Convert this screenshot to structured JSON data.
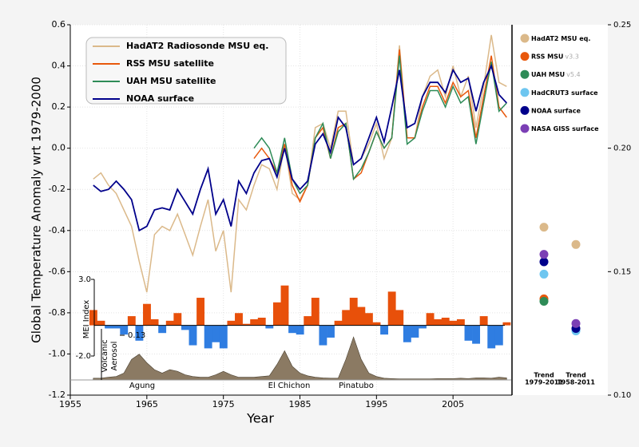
{
  "chart_data": [
    {
      "type": "line",
      "xlabel": "Year",
      "ylabel": "Global Temperature Anomaly wrt 1979-2000",
      "xlim": [
        1955,
        2012.6
      ],
      "xticks": [
        1955,
        1965,
        1975,
        1985,
        1995,
        2005
      ],
      "ylim": [
        -1.2,
        0.6
      ],
      "yticks": [
        0.6,
        0.4,
        0.2,
        {
          "value": 0,
          "label": "0.0"
        },
        -0.2,
        -0.4,
        -0.6,
        -0.8,
        {
          "value": -1,
          "label": "-1.0"
        },
        -1.2
      ],
      "grid": true,
      "legend": "upper left",
      "x": [
        1958,
        1959,
        1960,
        1961,
        1962,
        1963,
        1964,
        1965,
        1966,
        1967,
        1968,
        1969,
        1970,
        1971,
        1972,
        1973,
        1974,
        1975,
        1976,
        1977,
        1978,
        1979,
        1980,
        1981,
        1982,
        1983,
        1984,
        1985,
        1986,
        1987,
        1988,
        1989,
        1990,
        1991,
        1992,
        1993,
        1994,
        1995,
        1996,
        1997,
        1998,
        1999,
        2000,
        2001,
        2002,
        2003,
        2004,
        2005,
        2006,
        2007,
        2008,
        2009,
        2010,
        2011,
        2012
      ],
      "series": [
        {
          "name": "HadAT2 Radiosonde MSU eq.",
          "color": "#dbb98a",
          "values": [
            -0.15,
            -0.12,
            -0.18,
            -0.22,
            -0.3,
            -0.38,
            -0.55,
            -0.7,
            -0.42,
            -0.38,
            -0.4,
            -0.32,
            -0.42,
            -0.52,
            -0.38,
            -0.25,
            -0.5,
            -0.4,
            -0.7,
            -0.25,
            -0.3,
            -0.18,
            -0.08,
            -0.1,
            -0.2,
            0.02,
            -0.22,
            -0.25,
            -0.18,
            0.1,
            0.12,
            0.0,
            0.18,
            0.18,
            -0.08,
            -0.05,
            0.02,
            0.12,
            -0.05,
            0.05,
            0.5,
            0.05,
            0.05,
            0.25,
            0.35,
            0.38,
            0.25,
            0.4,
            0.25,
            0.35,
            0.1,
            0.3,
            0.55,
            0.32,
            0.3
          ]
        },
        {
          "name": "RSS MSU satellite",
          "color": "#e8580c",
          "values": [
            null,
            null,
            null,
            null,
            null,
            null,
            null,
            null,
            null,
            null,
            null,
            null,
            null,
            null,
            null,
            null,
            null,
            null,
            null,
            null,
            null,
            -0.05,
            0.0,
            -0.05,
            -0.12,
            0.02,
            -0.18,
            -0.26,
            -0.18,
            0.05,
            0.1,
            -0.05,
            0.1,
            0.12,
            -0.15,
            -0.12,
            -0.02,
            0.08,
            0.0,
            0.05,
            0.48,
            0.05,
            0.05,
            0.2,
            0.3,
            0.3,
            0.22,
            0.32,
            0.25,
            0.28,
            0.05,
            0.25,
            0.45,
            0.2,
            0.15
          ]
        },
        {
          "name": "UAH MSU satellite",
          "color": "#2e8b57",
          "values": [
            null,
            null,
            null,
            null,
            null,
            null,
            null,
            null,
            null,
            null,
            null,
            null,
            null,
            null,
            null,
            null,
            null,
            null,
            null,
            null,
            null,
            0.0,
            0.05,
            0.0,
            -0.12,
            0.05,
            -0.15,
            -0.22,
            -0.18,
            0.05,
            0.12,
            -0.05,
            0.08,
            0.12,
            -0.15,
            -0.1,
            -0.02,
            0.08,
            0.0,
            0.05,
            0.45,
            0.02,
            0.05,
            0.18,
            0.28,
            0.28,
            0.2,
            0.3,
            0.22,
            0.25,
            0.02,
            0.22,
            0.42,
            0.18,
            0.22
          ]
        },
        {
          "name": "NOAA surface",
          "color": "#00008b",
          "values": [
            -0.18,
            -0.21,
            -0.2,
            -0.16,
            -0.2,
            -0.25,
            -0.4,
            -0.38,
            -0.3,
            -0.29,
            -0.3,
            -0.2,
            -0.26,
            -0.32,
            -0.2,
            -0.1,
            -0.32,
            -0.25,
            -0.38,
            -0.16,
            -0.22,
            -0.12,
            -0.06,
            -0.05,
            -0.14,
            0.0,
            -0.15,
            -0.2,
            -0.16,
            0.02,
            0.07,
            -0.02,
            0.15,
            0.1,
            -0.08,
            -0.05,
            0.05,
            0.15,
            0.03,
            0.2,
            0.38,
            0.1,
            0.12,
            0.25,
            0.32,
            0.32,
            0.27,
            0.38,
            0.32,
            0.34,
            0.18,
            0.32,
            0.4,
            0.26,
            0.22
          ]
        }
      ]
    },
    {
      "type": "bar",
      "ylabel": "MEI Index",
      "ylim": [
        -2,
        3
      ],
      "yticks": [
        {
          "value": 3,
          "label": "3.0"
        },
        {
          "value": -2,
          "label": "-2.0"
        }
      ],
      "pos_color": "#e8500a",
      "neg_color": "#2f7de1",
      "x": [
        1958,
        1959,
        1960,
        1961,
        1962,
        1963,
        1964,
        1965,
        1966,
        1967,
        1968,
        1969,
        1970,
        1971,
        1972,
        1973,
        1974,
        1975,
        1976,
        1977,
        1978,
        1979,
        1980,
        1981,
        1982,
        1983,
        1984,
        1985,
        1986,
        1987,
        1988,
        1989,
        1990,
        1991,
        1992,
        1993,
        1994,
        1995,
        1996,
        1997,
        1998,
        1999,
        2000,
        2001,
        2002,
        2003,
        2004,
        2005,
        2006,
        2007,
        2008,
        2009,
        2010,
        2011,
        2012
      ],
      "values": [
        1.0,
        0.3,
        -0.2,
        -0.2,
        -0.6,
        0.6,
        -1.0,
        1.4,
        0.4,
        -0.5,
        0.3,
        0.8,
        -0.3,
        -1.3,
        1.8,
        -1.5,
        -1.1,
        -1.5,
        0.3,
        0.8,
        0.1,
        0.4,
        0.5,
        -0.2,
        1.5,
        2.6,
        -0.5,
        -0.6,
        0.6,
        1.8,
        -1.3,
        -0.8,
        0.3,
        1.0,
        1.8,
        1.2,
        0.8,
        0.2,
        -0.6,
        2.2,
        1.0,
        -1.1,
        -0.8,
        -0.2,
        0.8,
        0.4,
        0.5,
        0.3,
        0.4,
        -1.0,
        -1.2,
        0.6,
        -1.5,
        -1.3,
        0.2
      ]
    },
    {
      "type": "area",
      "ylabel": [
        "Volcanic",
        "Aerosol"
      ],
      "ylim": [
        0,
        0.13
      ],
      "yticks": [
        0.13
      ],
      "color": "#8b7a63",
      "annotations": [
        "Agung",
        "El Chichon",
        "Pinatubo"
      ],
      "x": [
        1958,
        1959,
        1960,
        1961,
        1962,
        1963,
        1964,
        1965,
        1966,
        1967,
        1968,
        1969,
        1970,
        1971,
        1972,
        1973,
        1974,
        1975,
        1976,
        1977,
        1978,
        1979,
        1980,
        1981,
        1982,
        1983,
        1984,
        1985,
        1986,
        1987,
        1988,
        1989,
        1990,
        1991,
        1992,
        1993,
        1994,
        1995,
        1996,
        1997,
        1998,
        1999,
        2000,
        2001,
        2002,
        2003,
        2004,
        2005,
        2006,
        2007,
        2008,
        2009,
        2010,
        2011,
        2012
      ],
      "values": [
        0.005,
        0.005,
        0.008,
        0.01,
        0.02,
        0.06,
        0.075,
        0.05,
        0.03,
        0.02,
        0.03,
        0.025,
        0.015,
        0.01,
        0.008,
        0.008,
        0.015,
        0.025,
        0.015,
        0.008,
        0.008,
        0.008,
        0.01,
        0.012,
        0.045,
        0.085,
        0.04,
        0.02,
        0.012,
        0.008,
        0.006,
        0.005,
        0.005,
        0.06,
        0.125,
        0.06,
        0.02,
        0.01,
        0.005,
        0.004,
        0.003,
        0.003,
        0.003,
        0.003,
        0.003,
        0.004,
        0.004,
        0.004,
        0.005,
        0.004,
        0.006,
        0.006,
        0.005,
        0.008,
        0.006
      ]
    },
    {
      "type": "scatter",
      "categories": [
        [
          "Trend",
          "1979-2011"
        ],
        [
          "Trend",
          "1958-2011"
        ]
      ],
      "ylim": [
        0.1,
        0.25
      ],
      "yticks": [
        0.25,
        {
          "value": 0.2,
          "label": "0.20"
        },
        0.15,
        {
          "value": 0.1,
          "label": "0.10"
        }
      ],
      "legend": "upper left",
      "series": [
        {
          "name": "HadAT2 MSU eq.",
          "color": "#dbb98a",
          "values": [
            0.168,
            0.161
          ]
        },
        {
          "name": "RSS MSU",
          "version": "v3.3",
          "color": "#e8580c",
          "values": [
            0.139,
            null
          ]
        },
        {
          "name": "UAH MSU",
          "version": "v5.4",
          "color": "#2e8b57",
          "values": [
            0.138,
            null
          ]
        },
        {
          "name": "HadCRUT3 surface",
          "color": "#6ec6f0",
          "values": [
            0.149,
            0.126
          ]
        },
        {
          "name": "NOAA surface",
          "color": "#00008b",
          "values": [
            0.154,
            0.127
          ]
        },
        {
          "name": "NASA GISS surface",
          "color": "#7b3fb5",
          "values": [
            0.157,
            0.129
          ]
        }
      ]
    }
  ]
}
